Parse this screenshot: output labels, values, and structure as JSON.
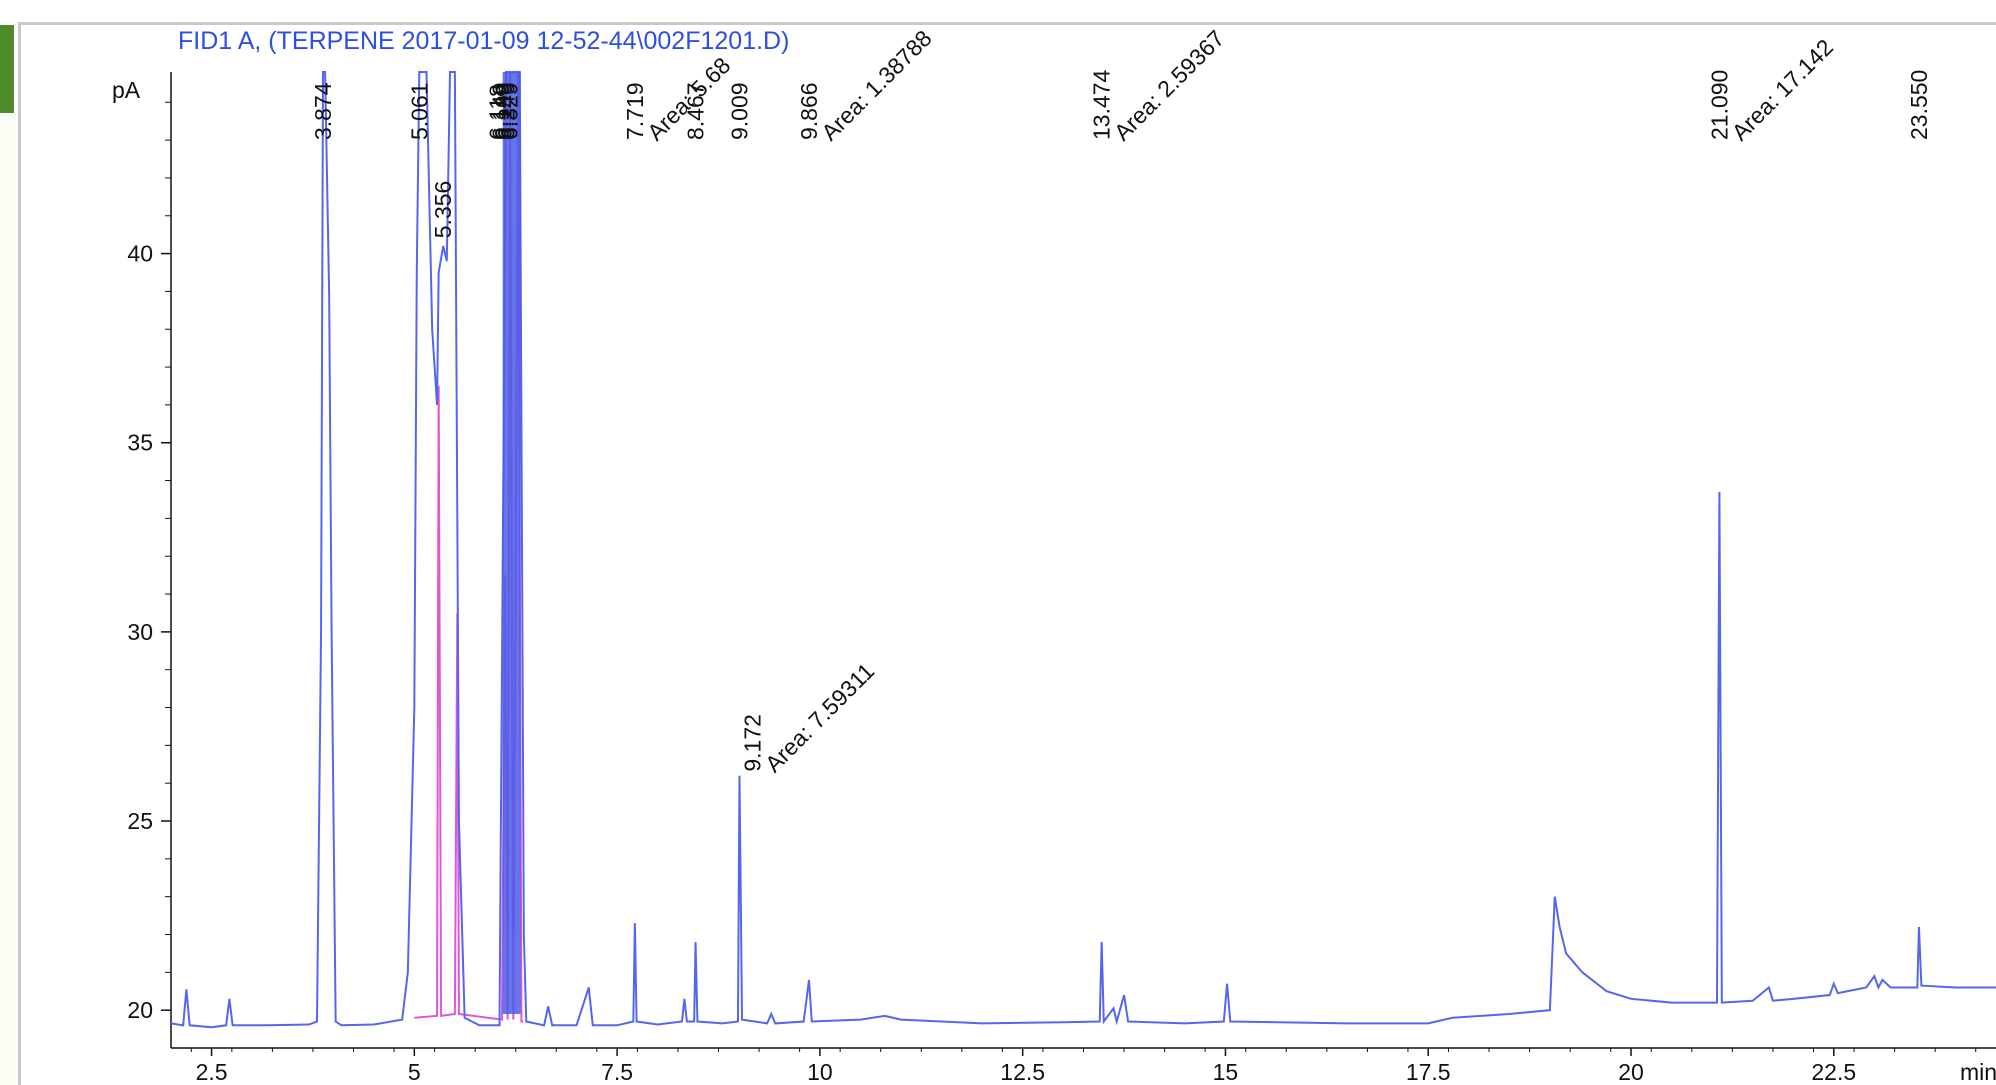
{
  "chart_data": {
    "type": "line",
    "title": "FID1 A,  (TERPENE 2017-01-09 12-52-44\\002F1201.D)",
    "ylabel": "pA",
    "xlabel": "min",
    "xlim": [
      2.0,
      24.5
    ],
    "ylim": [
      19.0,
      44.8
    ],
    "x_ticks": [
      "2.5",
      "5",
      "7.5",
      "10",
      "12.5",
      "15",
      "17.5",
      "20",
      "22.5"
    ],
    "y_ticks": [
      "20",
      "25",
      "30",
      "35",
      "40"
    ],
    "grid": false,
    "colors": {
      "signal": "#5566ee",
      "baseline": "#e055d8",
      "title": "#2d4fe0",
      "axis": "#111111"
    },
    "peaks": [
      {
        "label": "3.874",
        "x": 3.874
      },
      {
        "label": "5.061",
        "x": 5.061
      },
      {
        "label": "5.356",
        "x": 5.356
      },
      {
        "label": "7.719",
        "x": 7.719,
        "area": "Area: 5.68"
      },
      {
        "label": "8.467",
        "x": 8.467
      },
      {
        "label": "9.009",
        "x": 9.009
      },
      {
        "label": "9.172",
        "x": 9.172,
        "area": "Area: 7.59311"
      },
      {
        "label": "9.866",
        "x": 9.866,
        "area": "Area: 1.38788"
      },
      {
        "label": "13.474",
        "x": 13.474,
        "area": "Area: 2.59367"
      },
      {
        "label": "21.090",
        "x": 21.09,
        "area": "Area: 17.142"
      },
      {
        "label": "23.550",
        "x": 23.55
      }
    ],
    "cluster_labels": [
      "6.118",
      "6.149",
      "6.199",
      "6.249",
      "6.329"
    ],
    "signal": [
      [
        2.0,
        19.65
      ],
      [
        2.15,
        19.6
      ],
      [
        2.19,
        20.55
      ],
      [
        2.23,
        19.6
      ],
      [
        2.5,
        19.55
      ],
      [
        2.68,
        19.6
      ],
      [
        2.72,
        20.3
      ],
      [
        2.76,
        19.6
      ],
      [
        3.2,
        19.6
      ],
      [
        3.7,
        19.62
      ],
      [
        3.8,
        19.7
      ],
      [
        3.85,
        30
      ],
      [
        3.874,
        44.8
      ],
      [
        3.9,
        44.8
      ],
      [
        3.95,
        38.9
      ],
      [
        3.98,
        30
      ],
      [
        4.03,
        19.7
      ],
      [
        4.1,
        19.6
      ],
      [
        4.5,
        19.62
      ],
      [
        4.85,
        19.75
      ],
      [
        4.92,
        21
      ],
      [
        5.0,
        28
      ],
      [
        5.03,
        39.5
      ],
      [
        5.061,
        44.8
      ],
      [
        5.15,
        44.8
      ],
      [
        5.22,
        38
      ],
      [
        5.28,
        36
      ],
      [
        5.3,
        39.5
      ],
      [
        5.356,
        40.2
      ],
      [
        5.4,
        39.8
      ],
      [
        5.44,
        44.8
      ],
      [
        5.5,
        44.8
      ],
      [
        5.55,
        25
      ],
      [
        5.62,
        19.8
      ],
      [
        5.8,
        19.6
      ],
      [
        6.05,
        19.6
      ],
      [
        6.1,
        35
      ],
      [
        6.13,
        44.8
      ],
      [
        6.3,
        44.8
      ],
      [
        6.35,
        22
      ],
      [
        6.38,
        19.7
      ],
      [
        6.6,
        19.6
      ],
      [
        6.65,
        20.1
      ],
      [
        6.7,
        19.6
      ],
      [
        7.0,
        19.6
      ],
      [
        7.15,
        20.6
      ],
      [
        7.2,
        19.6
      ],
      [
        7.5,
        19.6
      ],
      [
        7.7,
        19.7
      ],
      [
        7.719,
        22.3
      ],
      [
        7.74,
        19.7
      ],
      [
        8.0,
        19.62
      ],
      [
        8.3,
        19.7
      ],
      [
        8.33,
        20.3
      ],
      [
        8.36,
        19.7
      ],
      [
        8.45,
        19.7
      ],
      [
        8.467,
        21.8
      ],
      [
        8.49,
        19.7
      ],
      [
        8.8,
        19.65
      ],
      [
        8.99,
        19.7
      ],
      [
        9.009,
        26.2
      ],
      [
        9.04,
        19.75
      ],
      [
        9.35,
        19.65
      ],
      [
        9.4,
        19.9
      ],
      [
        9.45,
        19.65
      ],
      [
        9.8,
        19.7
      ],
      [
        9.866,
        20.8
      ],
      [
        9.9,
        19.7
      ],
      [
        10.5,
        19.75
      ],
      [
        10.8,
        19.85
      ],
      [
        11.0,
        19.75
      ],
      [
        12.0,
        19.65
      ],
      [
        13.0,
        19.68
      ],
      [
        13.45,
        19.7
      ],
      [
        13.474,
        21.8
      ],
      [
        13.5,
        19.7
      ],
      [
        13.62,
        20.05
      ],
      [
        13.66,
        19.7
      ],
      [
        13.75,
        20.4
      ],
      [
        13.8,
        19.7
      ],
      [
        14.5,
        19.65
      ],
      [
        14.98,
        19.7
      ],
      [
        15.02,
        20.7
      ],
      [
        15.06,
        19.7
      ],
      [
        16.5,
        19.65
      ],
      [
        17.5,
        19.65
      ],
      [
        17.8,
        19.8
      ],
      [
        18.5,
        19.9
      ],
      [
        19.0,
        20.0
      ],
      [
        19.06,
        23.0
      ],
      [
        19.12,
        22.2
      ],
      [
        19.2,
        21.5
      ],
      [
        19.4,
        21.0
      ],
      [
        19.7,
        20.5
      ],
      [
        20.0,
        20.3
      ],
      [
        20.5,
        20.2
      ],
      [
        21.06,
        20.2
      ],
      [
        21.09,
        33.7
      ],
      [
        21.12,
        20.2
      ],
      [
        21.5,
        20.25
      ],
      [
        21.7,
        20.6
      ],
      [
        21.75,
        20.25
      ],
      [
        22.0,
        20.3
      ],
      [
        22.45,
        20.4
      ],
      [
        22.5,
        20.7
      ],
      [
        22.55,
        20.45
      ],
      [
        22.9,
        20.6
      ],
      [
        23.0,
        20.9
      ],
      [
        23.05,
        20.6
      ],
      [
        23.1,
        20.8
      ],
      [
        23.2,
        20.6
      ],
      [
        23.53,
        20.6
      ],
      [
        23.55,
        22.2
      ],
      [
        23.58,
        20.65
      ],
      [
        24.0,
        20.6
      ],
      [
        24.5,
        20.6
      ]
    ],
    "baseline": [
      [
        5.0,
        19.8
      ],
      [
        5.28,
        19.85
      ],
      [
        5.3,
        36.5
      ],
      [
        5.33,
        19.85
      ],
      [
        5.5,
        19.9
      ],
      [
        5.53,
        30.5
      ],
      [
        5.55,
        19.9
      ],
      [
        6.08,
        19.75
      ],
      [
        6.12,
        31.5
      ],
      [
        6.15,
        19.75
      ],
      [
        6.18,
        44.8
      ],
      [
        6.22,
        19.75
      ],
      [
        6.28,
        44.8
      ],
      [
        6.32,
        19.7
      ],
      [
        6.34,
        19.7
      ]
    ]
  }
}
